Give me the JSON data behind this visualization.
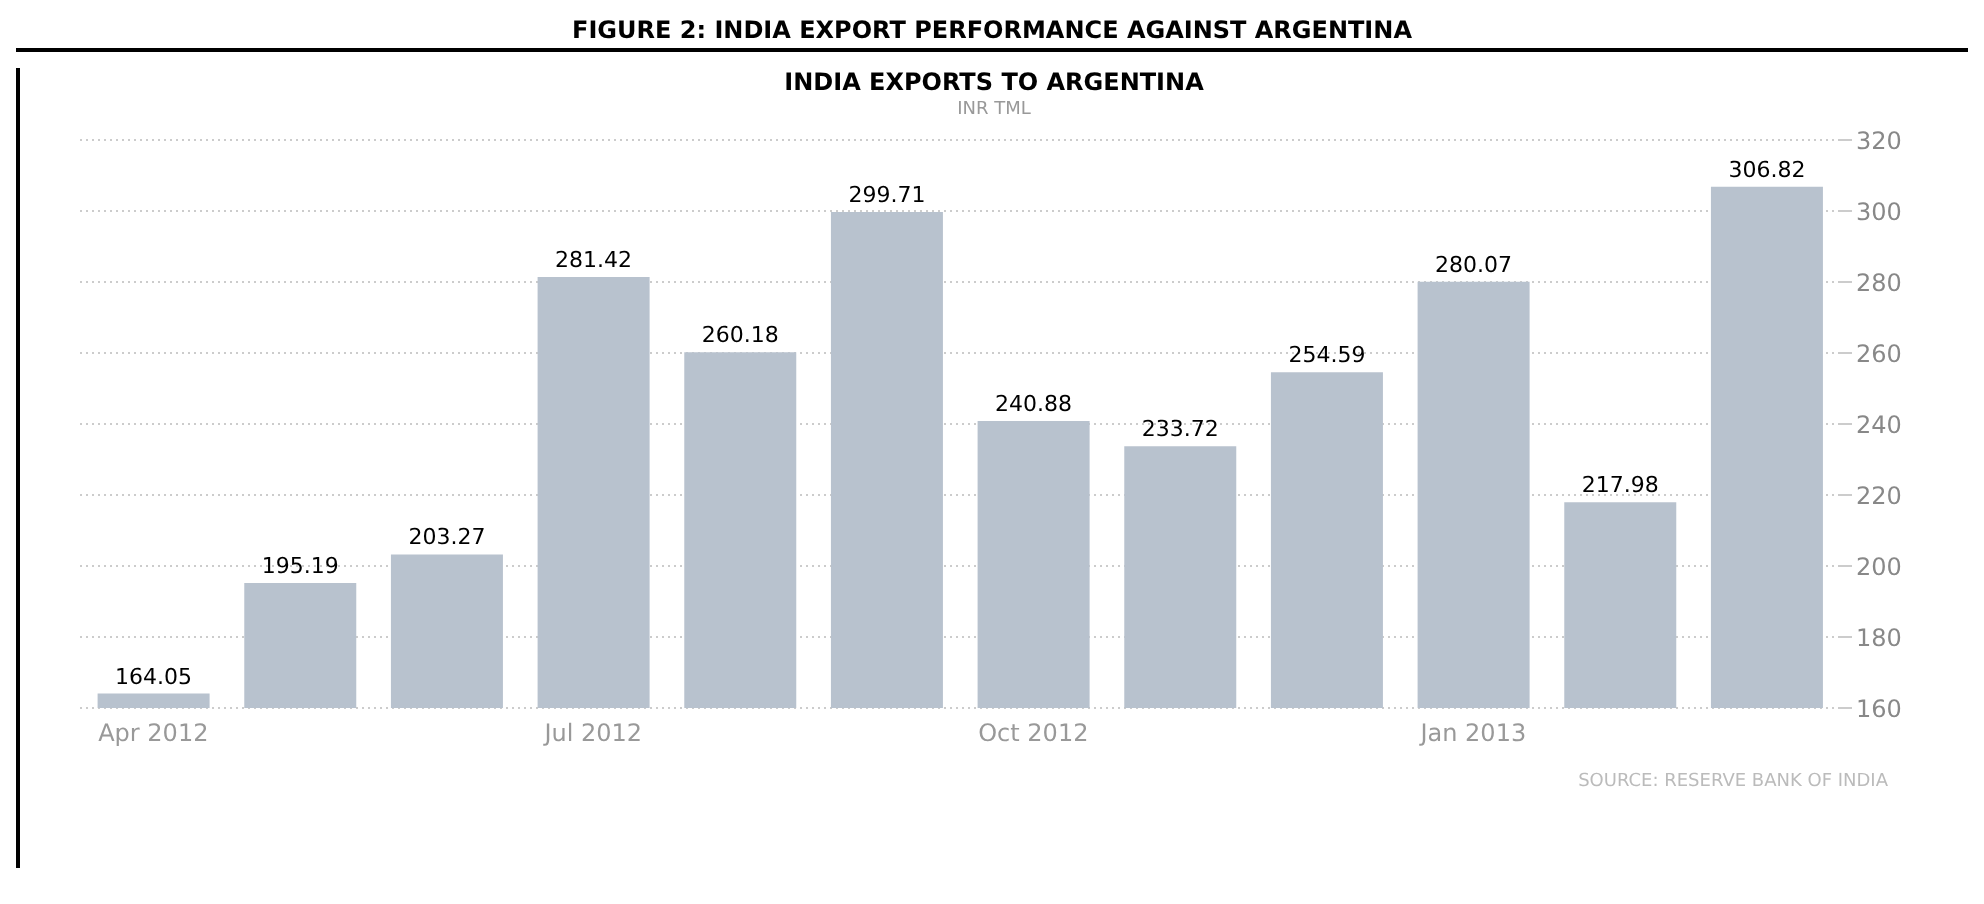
{
  "chart_data": {
    "type": "bar",
    "title": "INDIA EXPORTS TO ARGENTINA",
    "subtitle": "INR TML",
    "annotations": [
      "FIGURE 2: INDIA EXPORT PERFORMANCE AGAINST ARGENTINA",
      "SOURCE: RESERVE BANK OF INDIA"
    ],
    "categories": [
      "Apr 2012",
      null,
      null,
      "Jul 2012",
      null,
      null,
      "Oct 2012",
      null,
      null,
      "Jan 2013",
      null,
      null
    ],
    "values": [
      164.05,
      195.19,
      203.27,
      281.42,
      260.18,
      299.71,
      240.88,
      233.72,
      254.59,
      280.07,
      217.98,
      306.82
    ],
    "color": "#b8c2ce",
    "ylim": [
      160,
      320
    ],
    "yticks": [
      160,
      180,
      200,
      220,
      240,
      260,
      280,
      300,
      320
    ],
    "grid": "y",
    "data_labels": true
  }
}
